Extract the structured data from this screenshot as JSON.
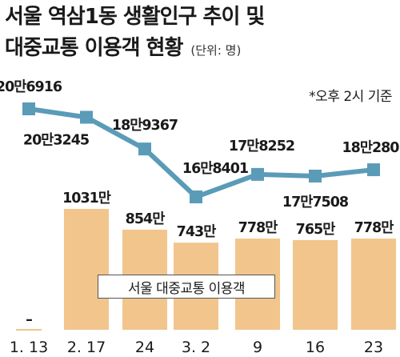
{
  "title_line1": "서울 역삼1동 생활인구 추이 및",
  "title_line2": "대중교통 이용객 현황",
  "unit": "(단위: 명)",
  "note": "*오후 2시 기준",
  "chart_data": {
    "type": "bar",
    "title": "서울 역삼1동 생활인구 추이 및 대중교통 이용객 현황",
    "unit": "(단위: 명)",
    "note": "*오후 2시 기준",
    "categories": [
      "1. 13",
      "2. 17",
      "24",
      "3. 2",
      "9",
      "16",
      "23"
    ],
    "series": [
      {
        "name": "서울 대중교통 이용객",
        "type": "bar",
        "values": [
          null,
          10310000,
          8540000,
          7430000,
          7780000,
          7650000,
          7780000
        ],
        "labels": [
          "–",
          "1031만",
          "854만",
          "743만",
          "778만",
          "765만",
          "778만"
        ],
        "color": "#f1c58c"
      },
      {
        "type": "line",
        "values": [
          206916,
          203245,
          189367,
          168401,
          178252,
          177508,
          180280
        ],
        "labels": [
          "20만6916",
          "20만3245",
          "18만9367",
          "16만8401",
          "17만8252",
          "17만7508",
          "18만280"
        ],
        "color": "#5a9bb8"
      }
    ]
  }
}
